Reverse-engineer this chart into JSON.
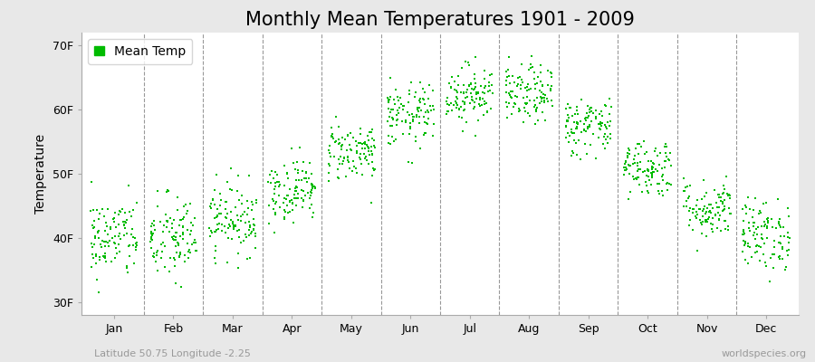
{
  "title": "Monthly Mean Temperatures 1901 - 2009",
  "ylabel": "Temperature",
  "background_color": "#e8e8e8",
  "plot_bg_color": "#ffffff",
  "dot_color": "#00bb00",
  "dot_size": 3,
  "ylim": [
    28,
    72
  ],
  "yticks": [
    30,
    40,
    50,
    60,
    70
  ],
  "ytick_labels": [
    "30F",
    "40F",
    "50F",
    "60F",
    "70F"
  ],
  "months": [
    "Jan",
    "Feb",
    "Mar",
    "Apr",
    "May",
    "Jun",
    "Jul",
    "Aug",
    "Sep",
    "Oct",
    "Nov",
    "Dec"
  ],
  "month_means_F": [
    40.0,
    39.8,
    43.0,
    47.5,
    53.5,
    59.0,
    62.5,
    62.3,
    57.5,
    51.0,
    44.5,
    40.5
  ],
  "month_stds_F": [
    3.2,
    3.5,
    2.8,
    2.5,
    2.3,
    2.5,
    2.3,
    2.3,
    2.3,
    2.3,
    2.3,
    2.8
  ],
  "n_years": 109,
  "legend_label": "Mean Temp",
  "subtitle_left": "Latitude 50.75 Longitude -2.25",
  "subtitle_right": "worldspecies.org",
  "title_fontsize": 15,
  "label_fontsize": 10,
  "tick_fontsize": 9,
  "subtitle_fontsize": 8,
  "vline_color": "#999999",
  "spine_color": "#aaaaaa"
}
